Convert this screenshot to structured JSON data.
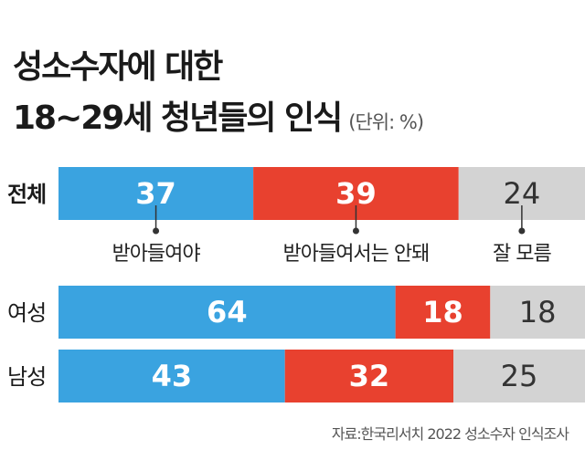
{
  "title_line1": "성소수자에 대한",
  "title_line2": "18~29세 청년들의 인식",
  "unit": "(단위: %)",
  "source": "자료:한국리서치 2022 성소수자 인식조사",
  "colors": {
    "accept": "#3aa3e0",
    "reject": "#e8412f",
    "unknown": "#d3d3d3"
  },
  "chart_data": {
    "type": "bar",
    "orientation": "horizontal",
    "stacked": true,
    "categories": [
      "전체",
      "여성",
      "남성"
    ],
    "series": [
      {
        "name": "받아들여야",
        "values": [
          37,
          64,
          43
        ]
      },
      {
        "name": "받아들여서는 안돼",
        "values": [
          39,
          18,
          32
        ]
      },
      {
        "name": "잘 모름",
        "values": [
          24,
          18,
          25
        ]
      }
    ],
    "xlim": [
      0,
      100
    ],
    "grid": false,
    "legend_position": "below first bar"
  }
}
